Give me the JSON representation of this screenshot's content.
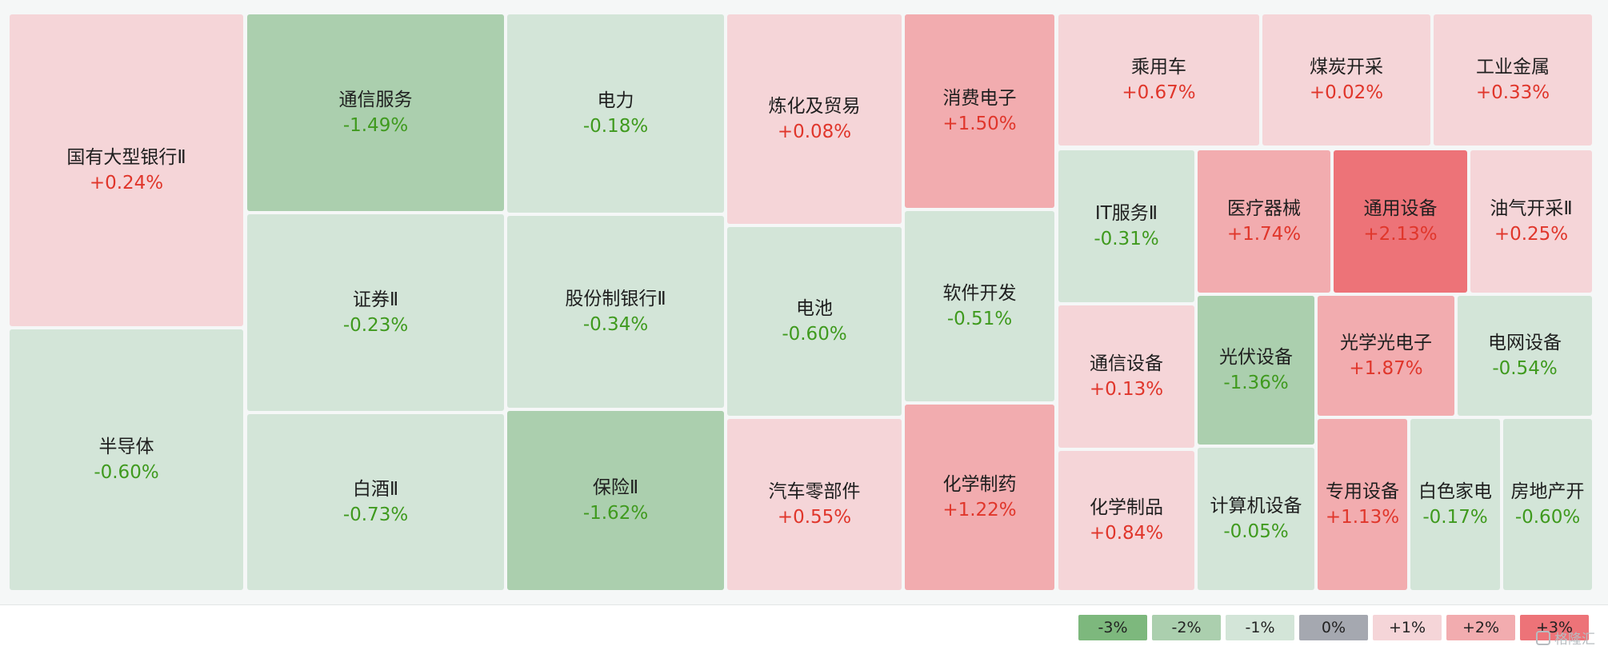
{
  "chart_data": {
    "type": "heatmap",
    "tiles": [
      {
        "name": "国有大型银行Ⅱ",
        "change": "+0.24%",
        "value": 0.24
      },
      {
        "name": "半导体",
        "change": "-0.60%",
        "value": -0.6
      },
      {
        "name": "通信服务",
        "change": "-1.49%",
        "value": -1.49
      },
      {
        "name": "证券Ⅱ",
        "change": "-0.23%",
        "value": -0.23
      },
      {
        "name": "白酒Ⅱ",
        "change": "-0.73%",
        "value": -0.73
      },
      {
        "name": "电力",
        "change": "-0.18%",
        "value": -0.18
      },
      {
        "name": "股份制银行Ⅱ",
        "change": "-0.34%",
        "value": -0.34
      },
      {
        "name": "保险Ⅱ",
        "change": "-1.62%",
        "value": -1.62
      },
      {
        "name": "炼化及贸易",
        "change": "+0.08%",
        "value": 0.08
      },
      {
        "name": "电池",
        "change": "-0.60%",
        "value": -0.6
      },
      {
        "name": "汽车零部件",
        "change": "+0.55%",
        "value": 0.55
      },
      {
        "name": "消费电子",
        "change": "+1.50%",
        "value": 1.5
      },
      {
        "name": "软件开发",
        "change": "-0.51%",
        "value": -0.51
      },
      {
        "name": "化学制药",
        "change": "+1.22%",
        "value": 1.22
      },
      {
        "name": "乘用车",
        "change": "+0.67%",
        "value": 0.67
      },
      {
        "name": "煤炭开采",
        "change": "+0.02%",
        "value": 0.02
      },
      {
        "name": "工业金属",
        "change": "+0.33%",
        "value": 0.33
      },
      {
        "name": "IT服务Ⅱ",
        "change": "-0.31%",
        "value": -0.31
      },
      {
        "name": "医疗器械",
        "change": "+1.74%",
        "value": 1.74
      },
      {
        "name": "通用设备",
        "change": "+2.13%",
        "value": 2.13
      },
      {
        "name": "油气开采Ⅱ",
        "change": "+0.25%",
        "value": 0.25
      },
      {
        "name": "通信设备",
        "change": "+0.13%",
        "value": 0.13
      },
      {
        "name": "光伏设备",
        "change": "-1.36%",
        "value": -1.36
      },
      {
        "name": "光学光电子",
        "change": "+1.87%",
        "value": 1.87
      },
      {
        "name": "电网设备",
        "change": "-0.54%",
        "value": -0.54
      },
      {
        "name": "化学制品",
        "change": "+0.84%",
        "value": 0.84
      },
      {
        "name": "计算机设备",
        "change": "-0.05%",
        "value": -0.05
      },
      {
        "name": "专用设备",
        "change": "+1.13%",
        "value": 1.13
      },
      {
        "name": "白色家电",
        "change": "-0.17%",
        "value": -0.17
      },
      {
        "name": "房地产开",
        "change": "-0.60%",
        "value": -0.6
      }
    ],
    "legend": [
      {
        "label": "-3%",
        "color": "#7db87d"
      },
      {
        "label": "-2%",
        "color": "#abcfae"
      },
      {
        "label": "-1%",
        "color": "#d3e5d8"
      },
      {
        "label": "0%",
        "color": "#a5a8b0"
      },
      {
        "label": "+1%",
        "color": "#f5d5d8"
      },
      {
        "label": "+2%",
        "color": "#f2acaf"
      },
      {
        "label": "+3%",
        "color": "#ed7378"
      }
    ],
    "color_scale": {
      "neg_light": "#d3e5d8",
      "neg_mid": "#abcfae",
      "neg_dark": "#7db87d",
      "pos_light": "#f5d5d8",
      "pos_mid": "#f2acaf",
      "pos_dark": "#ed7378",
      "up_text": "#e0362b",
      "down_text": "#3f9a1e"
    }
  },
  "watermark": "格隆汇"
}
